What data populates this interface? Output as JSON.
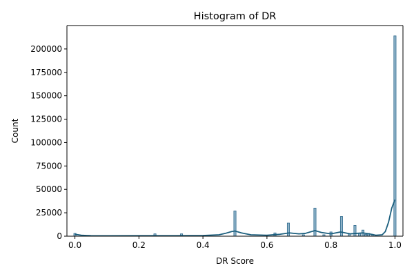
{
  "chart_data": {
    "type": "bar",
    "title": "Histogram of DR",
    "xlabel": "DR Score",
    "ylabel": "Count",
    "xlim": [
      -0.025,
      1.025
    ],
    "ylim": [
      0,
      225000
    ],
    "x_ticks": [
      0.0,
      0.2,
      0.4,
      0.6,
      0.8,
      1.0
    ],
    "x_tick_labels": [
      "0.0",
      "0.2",
      "0.4",
      "0.6",
      "0.8",
      "1.0"
    ],
    "y_ticks": [
      0,
      25000,
      50000,
      75000,
      100000,
      125000,
      150000,
      175000,
      200000
    ],
    "y_tick_labels": [
      "0",
      "25000",
      "50000",
      "75000",
      "100000",
      "125000",
      "150000",
      "175000",
      "200000"
    ],
    "grid": false,
    "colors": {
      "bar_fill": "#8fb3c9",
      "bar_edge": "#2f6a8e",
      "kde_line": "#1b5f7e",
      "axis": "#000000"
    },
    "bars": [
      {
        "x": 0.0,
        "count": 3000
      },
      {
        "x": 0.25,
        "count": 2500
      },
      {
        "x": 0.333,
        "count": 2500
      },
      {
        "x": 0.4,
        "count": 800
      },
      {
        "x": 0.5,
        "count": 27000
      },
      {
        "x": 0.6,
        "count": 1200
      },
      {
        "x": 0.625,
        "count": 3500
      },
      {
        "x": 0.667,
        "count": 14000
      },
      {
        "x": 0.714,
        "count": 1500
      },
      {
        "x": 0.75,
        "count": 30000
      },
      {
        "x": 0.778,
        "count": 1500
      },
      {
        "x": 0.8,
        "count": 4500
      },
      {
        "x": 0.833,
        "count": 21000
      },
      {
        "x": 0.857,
        "count": 2500
      },
      {
        "x": 0.875,
        "count": 11500
      },
      {
        "x": 0.889,
        "count": 3000
      },
      {
        "x": 0.9,
        "count": 6500
      },
      {
        "x": 0.909,
        "count": 2000
      },
      {
        "x": 0.917,
        "count": 3000
      },
      {
        "x": 0.929,
        "count": 2000
      },
      {
        "x": 1.0,
        "count": 214000
      }
    ],
    "kde": {
      "x": [
        0.0,
        0.02,
        0.05,
        0.1,
        0.2,
        0.3,
        0.4,
        0.45,
        0.47,
        0.49,
        0.5,
        0.52,
        0.55,
        0.6,
        0.64,
        0.67,
        0.7,
        0.72,
        0.75,
        0.77,
        0.8,
        0.83,
        0.86,
        0.88,
        0.9,
        0.92,
        0.94,
        0.96,
        0.97,
        0.98,
        0.99,
        1.0
      ],
      "y": [
        2000,
        1000,
        500,
        400,
        500,
        500,
        700,
        1500,
        3000,
        5000,
        5500,
        3500,
        1500,
        1000,
        2000,
        3500,
        2500,
        3000,
        6000,
        4000,
        2500,
        4500,
        2500,
        3000,
        3500,
        2500,
        1000,
        1500,
        5000,
        15000,
        30000,
        39000
      ]
    }
  }
}
